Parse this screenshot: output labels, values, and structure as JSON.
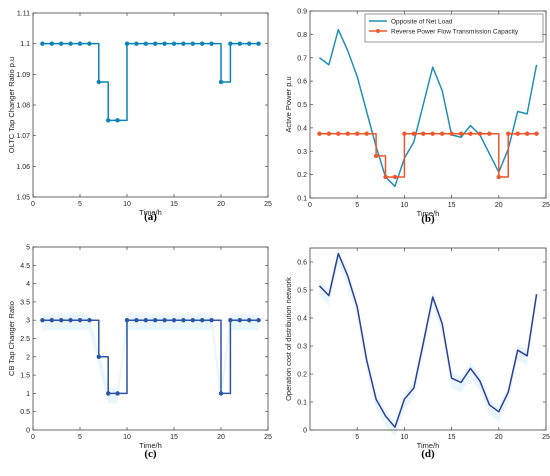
{
  "chart_data": [
    {
      "type": "line",
      "caption": "(a)",
      "xlabel": "Time/h",
      "ylabel": "OLTC Tap Changer Ratio p.u",
      "xlim": [
        0,
        25
      ],
      "ylim": [
        1.05,
        1.11
      ],
      "xticks": [
        "0",
        "5",
        "10",
        "15",
        "20",
        "25"
      ],
      "yticks": [
        "1.05",
        "1.06",
        "1.07",
        "1.08",
        "1.09",
        "1.1",
        "1.11"
      ],
      "step": true,
      "grid": false,
      "x": [
        1,
        2,
        3,
        4,
        5,
        6,
        7,
        8,
        9,
        10,
        11,
        12,
        13,
        14,
        15,
        16,
        17,
        18,
        19,
        20,
        21,
        22,
        23,
        24
      ],
      "series": [
        {
          "color": "#0a83b8",
          "values": [
            1.1,
            1.1,
            1.1,
            1.1,
            1.1,
            1.1,
            1.0875,
            1.075,
            1.075,
            1.1,
            1.1,
            1.1,
            1.1,
            1.1,
            1.1,
            1.1,
            1.1,
            1.1,
            1.1,
            1.0875,
            1.1,
            1.1,
            1.1,
            1.1
          ]
        }
      ]
    },
    {
      "type": "line",
      "caption": "(b)",
      "xlabel": "Time/h",
      "ylabel": "Active Power p.u",
      "xlim": [
        0,
        25
      ],
      "ylim": [
        0.1,
        0.9
      ],
      "xticks": [
        "0",
        "5",
        "10",
        "15",
        "20",
        "25"
      ],
      "yticks": [
        "0.1",
        "0.2",
        "0.3",
        "0.4",
        "0.5",
        "0.6",
        "0.7",
        "0.8",
        "0.9"
      ],
      "grid": false,
      "legend": "top-right",
      "x": [
        1,
        2,
        3,
        4,
        5,
        6,
        7,
        8,
        9,
        10,
        11,
        12,
        13,
        14,
        15,
        16,
        17,
        18,
        19,
        20,
        21,
        22,
        23,
        24
      ],
      "series": [
        {
          "name": "Opposite of Net Load",
          "color": "#1f8fb7",
          "step": false,
          "markers": false,
          "values": [
            0.7,
            0.67,
            0.82,
            0.73,
            0.62,
            0.47,
            0.32,
            0.19,
            0.15,
            0.27,
            0.34,
            0.5,
            0.66,
            0.56,
            0.37,
            0.36,
            0.41,
            0.37,
            0.29,
            0.21,
            0.31,
            0.47,
            0.46,
            0.67
          ]
        },
        {
          "name": "Reverse Power Flow Transmission Capacity",
          "color": "#f0572a",
          "step": true,
          "markers": true,
          "values": [
            0.375,
            0.375,
            0.375,
            0.375,
            0.375,
            0.375,
            0.28,
            0.19,
            0.19,
            0.375,
            0.375,
            0.375,
            0.375,
            0.375,
            0.375,
            0.375,
            0.375,
            0.375,
            0.375,
            0.19,
            0.375,
            0.375,
            0.375,
            0.375
          ]
        }
      ]
    },
    {
      "type": "line",
      "caption": "(c)",
      "xlabel": "Time/h",
      "ylabel": "CB Tap Changer Ratio",
      "xlim": [
        0,
        25
      ],
      "ylim": [
        0,
        5
      ],
      "xticks": [
        "0",
        "5",
        "10",
        "15",
        "20",
        "25"
      ],
      "yticks": [
        "0",
        "0.5",
        "1",
        "1.5",
        "2",
        "2.5",
        "3",
        "3.5",
        "4",
        "4.5",
        "5"
      ],
      "step": true,
      "grid": false,
      "x": [
        1,
        2,
        3,
        4,
        5,
        6,
        7,
        8,
        9,
        10,
        11,
        12,
        13,
        14,
        15,
        16,
        17,
        18,
        19,
        20,
        21,
        22,
        23,
        24
      ],
      "series": [
        {
          "color": "#2b54a8",
          "values": [
            3,
            3,
            3,
            3,
            3,
            3,
            2,
            1,
            1,
            3,
            3,
            3,
            3,
            3,
            3,
            3,
            3,
            3,
            3,
            1,
            3,
            3,
            3,
            3
          ]
        }
      ]
    },
    {
      "type": "line",
      "caption": "(d)",
      "xlabel": "Time/h",
      "ylabel": "Operation cost of distribution network",
      "xlim": [
        0,
        25
      ],
      "ylim": [
        0,
        0.65
      ],
      "xticks": [
        "5",
        "10",
        "15",
        "20",
        "25"
      ],
      "yticks": [
        "0",
        "0.1",
        "0.2",
        "0.3",
        "0.4",
        "0.5",
        "0.6"
      ],
      "grid": false,
      "x": [
        1,
        2,
        3,
        4,
        5,
        6,
        7,
        8,
        9,
        10,
        11,
        12,
        13,
        14,
        15,
        16,
        17,
        18,
        19,
        20,
        21,
        22,
        23,
        24
      ],
      "series": [
        {
          "color": "#2d3f99",
          "values": [
            0.515,
            0.48,
            0.63,
            0.55,
            0.44,
            0.25,
            0.11,
            0.05,
            0.01,
            0.11,
            0.15,
            0.31,
            0.475,
            0.38,
            0.185,
            0.17,
            0.22,
            0.175,
            0.09,
            0.065,
            0.135,
            0.285,
            0.265,
            0.485
          ]
        }
      ]
    }
  ]
}
